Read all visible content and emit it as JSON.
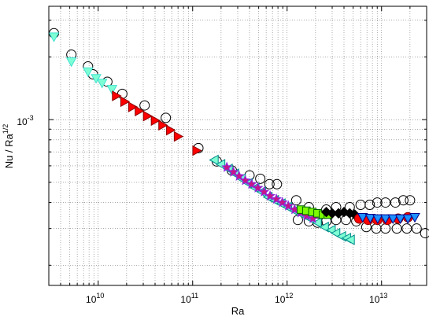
{
  "chart_data": {
    "type": "scatter",
    "title": "",
    "xlabel": "Ra",
    "ylabel": {
      "base": "Nu / Ra",
      "sup": "1/2"
    },
    "xscale": "log",
    "yscale": "log",
    "xlim": [
      3000000000.0,
      30000000000000.0
    ],
    "ylim": [
      0.00016,
      0.0035
    ],
    "grid": true,
    "grid_style": "dotted",
    "x_ticks": [
      {
        "value": 10000000000.0,
        "base": "10",
        "exp": "10"
      },
      {
        "value": 100000000000.0,
        "base": "10",
        "exp": "11"
      },
      {
        "value": 1000000000000.0,
        "base": "10",
        "exp": "12"
      },
      {
        "value": 10000000000000.0,
        "base": "10",
        "exp": "13"
      }
    ],
    "y_ticks": [
      {
        "value": 0.001,
        "base": "10",
        "exp": "-3"
      }
    ],
    "series": [
      {
        "marker": "circle-open",
        "color": "#000000",
        "fill": "none",
        "points": [
          [
            3400000000.0,
            0.0026
          ],
          [
            5200000000.0,
            0.00205
          ],
          [
            7800000000.0,
            0.0018
          ],
          [
            8800000000.0,
            0.00165
          ],
          [
            12500000000.0,
            0.00152
          ],
          [
            18000000000.0,
            0.00133
          ],
          [
            31000000000.0,
            0.00117
          ],
          [
            52000000000.0,
            0.00102
          ],
          [
            115000000000.0,
            0.00073
          ],
          [
            180000000000.0,
            0.00063
          ],
          [
            260000000000.0,
            0.00057
          ],
          [
            400000000000.0,
            0.00054
          ],
          [
            520000000000.0,
            0.00052
          ],
          [
            650000000000.0,
            0.00049
          ],
          [
            780000000000.0,
            0.00049
          ],
          [
            1250000000000.0,
            0.00041
          ],
          [
            1700000000000.0,
            0.00038
          ],
          [
            2600000000000.0,
            0.00037
          ],
          [
            3300000000000.0,
            0.00038
          ],
          [
            4600000000000.0,
            0.00038
          ],
          [
            6000000000000.0,
            0.00039
          ],
          [
            7500000000000.0,
            0.00039
          ],
          [
            9000000000000.0,
            0.0004
          ],
          [
            11000000000000.0,
            0.0004
          ],
          [
            14000000000000.0,
            0.0004
          ],
          [
            17000000000000.0,
            0.00041
          ],
          [
            20000000000000.0,
            0.00041
          ],
          [
            1300000000000.0,
            0.00033
          ],
          [
            1700000000000.0,
            0.000325
          ],
          [
            2100000000000.0,
            0.00032
          ],
          [
            2600000000000.0,
            0.000325
          ],
          [
            3300000000000.0,
            0.00033
          ],
          [
            4200000000000.0,
            0.00033
          ],
          [
            5400000000000.0,
            0.000325
          ],
          [
            6900000000000.0,
            0.000305
          ],
          [
            8800000000000.0,
            0.0003
          ],
          [
            11000000000000.0,
            0.0003
          ],
          [
            14500000000000.0,
            0.0003
          ],
          [
            18500000000000.0,
            0.0003
          ],
          [
            23500000000000.0,
            0.0003
          ],
          [
            29000000000000.0,
            0.000285
          ]
        ]
      },
      {
        "marker": "triangle-down",
        "color": "#40e0d0",
        "fill": "#7fffd4",
        "points": [
          [
            3400000000.0,
            0.0025
          ],
          [
            5200000000.0,
            0.0019
          ],
          [
            7800000000.0,
            0.0017
          ],
          [
            9500000000.0,
            0.00158
          ],
          [
            11000000000.0,
            0.0015
          ],
          [
            14000000000.0,
            0.0014
          ]
        ]
      },
      {
        "marker": "triangle-right",
        "color": "#8b0000",
        "fill": "#ff0000",
        "points": [
          [
            15500000000.0,
            0.0013
          ],
          [
            19000000000.0,
            0.00122
          ],
          [
            23000000000.0,
            0.00115
          ],
          [
            27000000000.0,
            0.0011
          ],
          [
            33000000000.0,
            0.00104
          ],
          [
            40000000000.0,
            0.00099
          ],
          [
            48000000000.0,
            0.00094
          ],
          [
            58000000000.0,
            0.00089
          ],
          [
            70000000000.0,
            0.00083
          ],
          [
            110000000000.0,
            0.00071
          ]
        ]
      },
      {
        "marker": "triangle-left",
        "color": "#008b8b",
        "fill": "#7fffd4",
        "points": [
          [
            170000000000.0,
            0.00064
          ],
          [
            200000000000.0,
            0.00061
          ],
          [
            240000000000.0,
            0.00058
          ],
          [
            280000000000.0,
            0.00055
          ],
          [
            330000000000.0,
            0.00052
          ],
          [
            390000000000.0,
            0.000495
          ],
          [
            460000000000.0,
            0.00047
          ],
          [
            540000000000.0,
            0.00045
          ],
          [
            630000000000.0,
            0.000425
          ],
          [
            740000000000.0,
            0.00041
          ],
          [
            870000000000.0,
            0.000395
          ],
          [
            1020000000000.0,
            0.00038
          ],
          [
            1200000000000.0,
            0.000365
          ],
          [
            1450000000000.0,
            0.00035
          ],
          [
            1750000000000.0,
            0.000335
          ],
          [
            2100000000000.0,
            0.00032
          ],
          [
            2500000000000.0,
            0.000305
          ],
          [
            2950000000000.0,
            0.000295
          ],
          [
            3300000000000.0,
            0.000285
          ],
          [
            3800000000000.0,
            0.000275
          ],
          [
            4300000000000.0,
            0.00027
          ],
          [
            4700000000000.0,
            0.000265
          ]
        ]
      },
      {
        "marker": "star",
        "color": "#8a2be2",
        "fill": "#c71585",
        "points": [
          [
            230000000000.0,
            0.00059
          ],
          [
            270000000000.0,
            0.00056
          ],
          [
            310000000000.0,
            0.000535
          ],
          [
            360000000000.0,
            0.00051
          ],
          [
            420000000000.0,
            0.00049
          ],
          [
            490000000000.0,
            0.00047
          ],
          [
            570000000000.0,
            0.00045
          ],
          [
            660000000000.0,
            0.00043
          ],
          [
            770000000000.0,
            0.000415
          ],
          [
            890000000000.0,
            0.0004
          ],
          [
            1030000000000.0,
            0.000385
          ],
          [
            1200000000000.0,
            0.00037
          ],
          [
            1390000000000.0,
            0.000357
          ],
          [
            1610000000000.0,
            0.000345
          ],
          [
            1870000000000.0,
            0.000335
          ]
        ]
      },
      {
        "marker": "square",
        "color": "#006400",
        "fill": "#7cfc00",
        "points": [
          [
            1400000000000.0,
            0.00037
          ],
          [
            1600000000000.0,
            0.000365
          ],
          [
            1850000000000.0,
            0.00036
          ],
          [
            2100000000000.0,
            0.000355
          ],
          [
            2400000000000.0,
            0.00035
          ],
          [
            2700000000000.0,
            0.00035
          ]
        ]
      },
      {
        "marker": "diamond",
        "color": "#000000",
        "fill": "#000000",
        "points": [
          [
            2600000000000.0,
            0.00036
          ],
          [
            3000000000000.0,
            0.000355
          ],
          [
            3500000000000.0,
            0.000355
          ],
          [
            4000000000000.0,
            0.00036
          ],
          [
            4600000000000.0,
            0.000355
          ],
          [
            5200000000000.0,
            0.00035
          ]
        ]
      },
      {
        "marker": "circle-filled",
        "color": "#8b0000",
        "fill": "#ff0000",
        "points": [
          [
            5800000000000.0,
            0.000335
          ],
          [
            7200000000000.0,
            0.00033
          ],
          [
            9000000000000.0,
            0.00033
          ],
          [
            11500000000000.0,
            0.00033
          ],
          [
            15000000000000.0,
            0.000335
          ],
          [
            19000000000000.0,
            0.00034
          ]
        ]
      },
      {
        "marker": "triangle-down",
        "color": "#00008b",
        "fill": "#1e90ff",
        "points": [
          [
            6300000000000.0,
            0.00034
          ],
          [
            7600000000000.0,
            0.000337
          ],
          [
            9100000000000.0,
            0.000335
          ],
          [
            11000000000000.0,
            0.000335
          ],
          [
            13200000000000.0,
            0.000335
          ],
          [
            15800000000000.0,
            0.000335
          ],
          [
            19000000000000.0,
            0.000335
          ],
          [
            22500000000000.0,
            0.00034
          ]
        ]
      }
    ]
  }
}
